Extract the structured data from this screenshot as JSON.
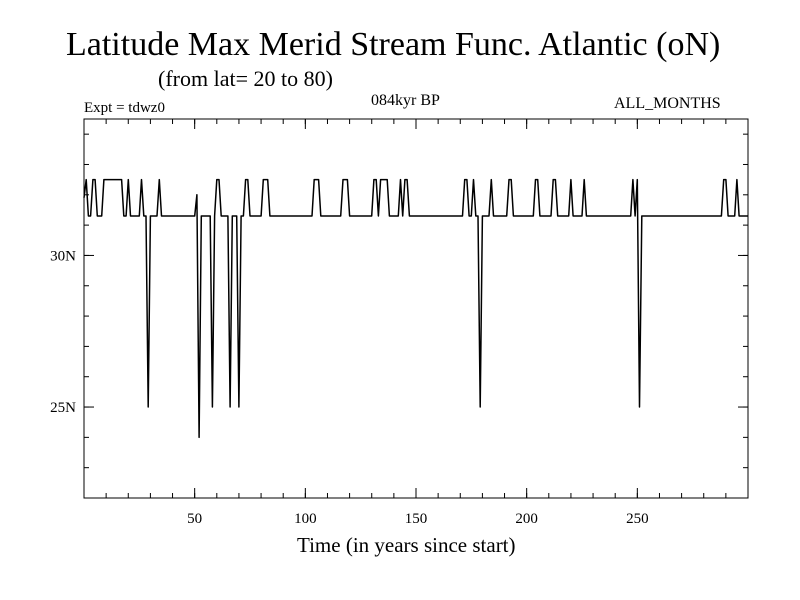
{
  "header": {
    "title": "Latitude Max Merid Stream Func. Atlantic (oN)",
    "subtitle": "(from lat= 20 to 80)",
    "experiment": "Expt = tdwz0",
    "period": "084kyr BP",
    "months": "ALL_MONTHS"
  },
  "chart_data": {
    "type": "line",
    "title": "Latitude Max Merid Stream Func. Atlantic (oN)",
    "subtitle": "(from lat= 20 to 80)",
    "xlabel": "Time (in years since start)",
    "ylabel": "",
    "xlim": [
      0,
      300
    ],
    "ylim": [
      22,
      34.5
    ],
    "x_ticks": [
      {
        "value": 50,
        "label": "50"
      },
      {
        "value": 100,
        "label": "100"
      },
      {
        "value": 150,
        "label": "150"
      },
      {
        "value": 200,
        "label": "200"
      },
      {
        "value": 250,
        "label": "250"
      }
    ],
    "y_ticks": [
      {
        "value": 25,
        "label": "25N"
      },
      {
        "value": 30,
        "label": "30N"
      }
    ],
    "grid": false,
    "series": [
      {
        "color": "#000000",
        "points": [
          [
            0,
            31.9
          ],
          [
            1,
            32.5
          ],
          [
            2,
            31.3
          ],
          [
            3,
            31.3
          ],
          [
            4,
            32.5
          ],
          [
            5,
            32.5
          ],
          [
            6,
            31.3
          ],
          [
            7,
            31.3
          ],
          [
            8,
            31.3
          ],
          [
            9,
            32.5
          ],
          [
            10,
            32.5
          ],
          [
            11,
            32.5
          ],
          [
            12,
            32.5
          ],
          [
            13,
            32.5
          ],
          [
            14,
            32.5
          ],
          [
            15,
            32.5
          ],
          [
            16,
            32.5
          ],
          [
            17,
            32.5
          ],
          [
            18,
            31.3
          ],
          [
            19,
            31.3
          ],
          [
            20,
            32.5
          ],
          [
            21,
            31.3
          ],
          [
            22,
            31.3
          ],
          [
            23,
            31.3
          ],
          [
            24,
            31.3
          ],
          [
            25,
            31.3
          ],
          [
            26,
            32.5
          ],
          [
            27,
            31.3
          ],
          [
            28,
            31.3
          ],
          [
            29,
            25
          ],
          [
            30,
            31.3
          ],
          [
            31,
            31.3
          ],
          [
            32,
            31.3
          ],
          [
            33,
            31.3
          ],
          [
            34,
            32.5
          ],
          [
            35,
            31.3
          ],
          [
            36,
            31.3
          ],
          [
            37,
            31.3
          ],
          [
            38,
            31.3
          ],
          [
            39,
            31.3
          ],
          [
            40,
            31.3
          ],
          [
            41,
            31.3
          ],
          [
            42,
            31.3
          ],
          [
            43,
            31.3
          ],
          [
            44,
            31.3
          ],
          [
            45,
            31.3
          ],
          [
            46,
            31.3
          ],
          [
            47,
            31.3
          ],
          [
            48,
            31.3
          ],
          [
            49,
            31.3
          ],
          [
            50,
            31.3
          ],
          [
            51,
            32
          ],
          [
            52,
            24
          ],
          [
            53,
            31.3
          ],
          [
            54,
            31.3
          ],
          [
            55,
            31.3
          ],
          [
            56,
            31.3
          ],
          [
            57,
            31.3
          ],
          [
            58,
            25
          ],
          [
            59,
            31.3
          ],
          [
            60,
            32.5
          ],
          [
            61,
            32.5
          ],
          [
            62,
            31.3
          ],
          [
            63,
            31.3
          ],
          [
            64,
            31.3
          ],
          [
            65,
            31.3
          ],
          [
            66,
            25
          ],
          [
            67,
            31.3
          ],
          [
            68,
            31.3
          ],
          [
            69,
            31.3
          ],
          [
            70,
            25
          ],
          [
            71,
            31.3
          ],
          [
            72,
            31.3
          ],
          [
            73,
            32.5
          ],
          [
            74,
            32.5
          ],
          [
            75,
            31.3
          ],
          [
            76,
            31.3
          ],
          [
            77,
            31.3
          ],
          [
            78,
            31.3
          ],
          [
            79,
            31.3
          ],
          [
            80,
            31.3
          ],
          [
            81,
            32.5
          ],
          [
            82,
            32.5
          ],
          [
            83,
            32.5
          ],
          [
            84,
            31.3
          ],
          [
            85,
            31.3
          ],
          [
            86,
            31.3
          ],
          [
            87,
            31.3
          ],
          [
            88,
            31.3
          ],
          [
            89,
            31.3
          ],
          [
            90,
            31.3
          ],
          [
            91,
            31.3
          ],
          [
            92,
            31.3
          ],
          [
            93,
            31.3
          ],
          [
            94,
            31.3
          ],
          [
            95,
            31.3
          ],
          [
            96,
            31.3
          ],
          [
            97,
            31.3
          ],
          [
            98,
            31.3
          ],
          [
            99,
            31.3
          ],
          [
            100,
            31.3
          ],
          [
            101,
            31.3
          ],
          [
            102,
            31.3
          ],
          [
            103,
            31.3
          ],
          [
            104,
            32.5
          ],
          [
            105,
            32.5
          ],
          [
            106,
            32.5
          ],
          [
            107,
            31.3
          ],
          [
            108,
            31.3
          ],
          [
            109,
            31.3
          ],
          [
            110,
            31.3
          ],
          [
            111,
            31.3
          ],
          [
            112,
            31.3
          ],
          [
            113,
            31.3
          ],
          [
            114,
            31.3
          ],
          [
            115,
            31.3
          ],
          [
            116,
            31.3
          ],
          [
            117,
            32.5
          ],
          [
            118,
            32.5
          ],
          [
            119,
            32.5
          ],
          [
            120,
            31.3
          ],
          [
            121,
            31.3
          ],
          [
            122,
            31.3
          ],
          [
            123,
            31.3
          ],
          [
            124,
            31.3
          ],
          [
            125,
            31.3
          ],
          [
            126,
            31.3
          ],
          [
            127,
            31.3
          ],
          [
            128,
            31.3
          ],
          [
            129,
            31.3
          ],
          [
            130,
            31.3
          ],
          [
            131,
            32.5
          ],
          [
            132,
            32.5
          ],
          [
            133,
            31.3
          ],
          [
            134,
            32.5
          ],
          [
            135,
            32.5
          ],
          [
            136,
            32.5
          ],
          [
            137,
            32.5
          ],
          [
            138,
            31.3
          ],
          [
            139,
            31.3
          ],
          [
            140,
            31.3
          ],
          [
            141,
            31.3
          ],
          [
            142,
            31.3
          ],
          [
            143,
            32.5
          ],
          [
            144,
            31.3
          ],
          [
            145,
            32.5
          ],
          [
            146,
            32.5
          ],
          [
            147,
            31.3
          ],
          [
            148,
            31.3
          ],
          [
            149,
            31.3
          ],
          [
            150,
            31.3
          ],
          [
            151,
            31.3
          ],
          [
            152,
            31.3
          ],
          [
            153,
            31.3
          ],
          [
            154,
            31.3
          ],
          [
            155,
            31.3
          ],
          [
            156,
            31.3
          ],
          [
            157,
            31.3
          ],
          [
            158,
            31.3
          ],
          [
            159,
            31.3
          ],
          [
            160,
            31.3
          ],
          [
            161,
            31.3
          ],
          [
            162,
            31.3
          ],
          [
            163,
            31.3
          ],
          [
            164,
            31.3
          ],
          [
            165,
            31.3
          ],
          [
            166,
            31.3
          ],
          [
            167,
            31.3
          ],
          [
            168,
            31.3
          ],
          [
            169,
            31.3
          ],
          [
            170,
            31.3
          ],
          [
            171,
            31.3
          ],
          [
            172,
            32.5
          ],
          [
            173,
            32.5
          ],
          [
            174,
            31.3
          ],
          [
            175,
            31.3
          ],
          [
            176,
            32.5
          ],
          [
            177,
            31.3
          ],
          [
            178,
            31.3
          ],
          [
            179,
            25
          ],
          [
            180,
            31.3
          ],
          [
            181,
            31.3
          ],
          [
            182,
            31.3
          ],
          [
            183,
            31.3
          ],
          [
            184,
            32.5
          ],
          [
            185,
            31.3
          ],
          [
            186,
            31.3
          ],
          [
            187,
            31.3
          ],
          [
            188,
            31.3
          ],
          [
            189,
            31.3
          ],
          [
            190,
            31.3
          ],
          [
            191,
            31.3
          ],
          [
            192,
            32.5
          ],
          [
            193,
            32.5
          ],
          [
            194,
            31.3
          ],
          [
            195,
            31.3
          ],
          [
            196,
            31.3
          ],
          [
            197,
            31.3
          ],
          [
            198,
            31.3
          ],
          [
            199,
            31.3
          ],
          [
            200,
            31.3
          ],
          [
            201,
            31.3
          ],
          [
            202,
            31.3
          ],
          [
            203,
            31.3
          ],
          [
            204,
            32.5
          ],
          [
            205,
            32.5
          ],
          [
            206,
            31.3
          ],
          [
            207,
            31.3
          ],
          [
            208,
            31.3
          ],
          [
            209,
            31.3
          ],
          [
            210,
            31.3
          ],
          [
            211,
            31.3
          ],
          [
            212,
            32.5
          ],
          [
            213,
            32.5
          ],
          [
            214,
            31.3
          ],
          [
            215,
            31.3
          ],
          [
            216,
            31.3
          ],
          [
            217,
            31.3
          ],
          [
            218,
            31.3
          ],
          [
            219,
            31.3
          ],
          [
            220,
            32.5
          ],
          [
            221,
            31.3
          ],
          [
            222,
            31.3
          ],
          [
            223,
            31.3
          ],
          [
            224,
            31.3
          ],
          [
            225,
            31.3
          ],
          [
            226,
            32.5
          ],
          [
            227,
            31.3
          ],
          [
            228,
            31.3
          ],
          [
            229,
            31.3
          ],
          [
            230,
            31.3
          ],
          [
            231,
            31.3
          ],
          [
            232,
            31.3
          ],
          [
            233,
            31.3
          ],
          [
            234,
            31.3
          ],
          [
            235,
            31.3
          ],
          [
            236,
            31.3
          ],
          [
            237,
            31.3
          ],
          [
            238,
            31.3
          ],
          [
            239,
            31.3
          ],
          [
            240,
            31.3
          ],
          [
            241,
            31.3
          ],
          [
            242,
            31.3
          ],
          [
            243,
            31.3
          ],
          [
            244,
            31.3
          ],
          [
            245,
            31.3
          ],
          [
            246,
            31.3
          ],
          [
            247,
            31.3
          ],
          [
            248,
            32.5
          ],
          [
            249,
            31.3
          ],
          [
            250,
            32.5
          ],
          [
            251,
            25
          ],
          [
            252,
            31.3
          ],
          [
            253,
            31.3
          ],
          [
            254,
            31.3
          ],
          [
            255,
            31.3
          ],
          [
            256,
            31.3
          ],
          [
            257,
            31.3
          ],
          [
            258,
            31.3
          ],
          [
            259,
            31.3
          ],
          [
            260,
            31.3
          ],
          [
            261,
            31.3
          ],
          [
            262,
            31.3
          ],
          [
            263,
            31.3
          ],
          [
            264,
            31.3
          ],
          [
            265,
            31.3
          ],
          [
            266,
            31.3
          ],
          [
            267,
            31.3
          ],
          [
            268,
            31.3
          ],
          [
            269,
            31.3
          ],
          [
            270,
            31.3
          ],
          [
            271,
            31.3
          ],
          [
            272,
            31.3
          ],
          [
            273,
            31.3
          ],
          [
            274,
            31.3
          ],
          [
            275,
            31.3
          ],
          [
            276,
            31.3
          ],
          [
            277,
            31.3
          ],
          [
            278,
            31.3
          ],
          [
            279,
            31.3
          ],
          [
            280,
            31.3
          ],
          [
            281,
            31.3
          ],
          [
            282,
            31.3
          ],
          [
            283,
            31.3
          ],
          [
            284,
            31.3
          ],
          [
            285,
            31.3
          ],
          [
            286,
            31.3
          ],
          [
            287,
            31.3
          ],
          [
            288,
            31.3
          ],
          [
            289,
            32.5
          ],
          [
            290,
            32.5
          ],
          [
            291,
            31.3
          ],
          [
            292,
            31.3
          ],
          [
            293,
            31.3
          ],
          [
            294,
            31.3
          ],
          [
            295,
            32.5
          ],
          [
            296,
            31.3
          ],
          [
            297,
            31.3
          ],
          [
            298,
            31.3
          ],
          [
            299,
            31.3
          ],
          [
            300,
            31.3
          ]
        ]
      }
    ]
  }
}
